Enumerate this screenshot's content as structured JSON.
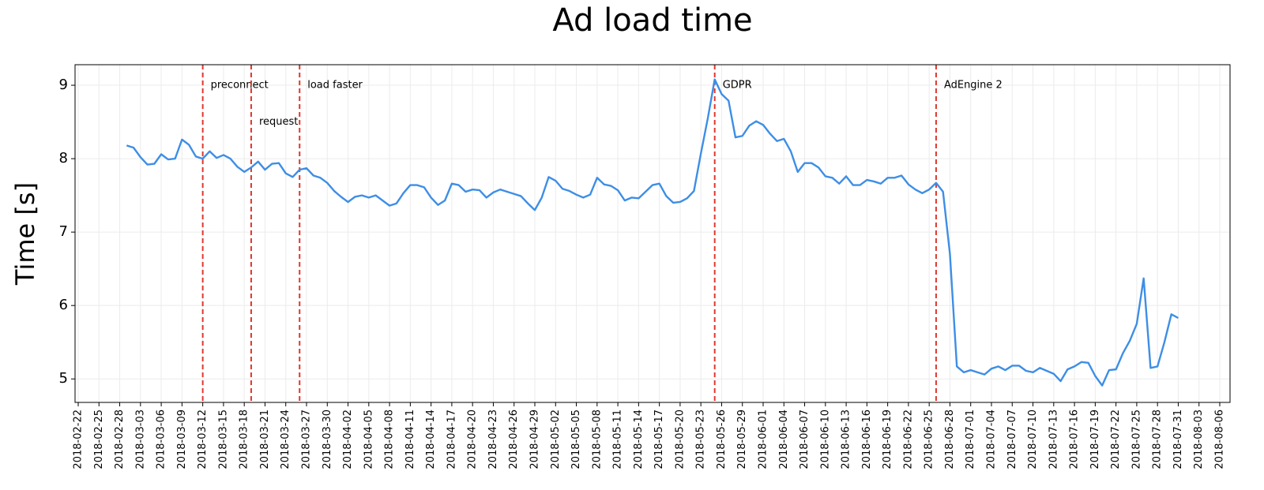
{
  "chart_data": {
    "type": "line",
    "title": "Ad load time",
    "ylabel": "Time [s]",
    "color": "#3d8ee6",
    "grid": true,
    "xlim": [
      "2018-02-22",
      "2018-08-06"
    ],
    "ylim": [
      4.68,
      9.28
    ],
    "yticks": [
      5,
      6,
      7,
      8,
      9
    ],
    "xticks": [
      "2018-02-22",
      "2018-02-25",
      "2018-02-28",
      "2018-03-03",
      "2018-03-06",
      "2018-03-09",
      "2018-03-12",
      "2018-03-15",
      "2018-03-18",
      "2018-03-21",
      "2018-03-24",
      "2018-03-27",
      "2018-03-30",
      "2018-04-02",
      "2018-04-05",
      "2018-04-08",
      "2018-04-11",
      "2018-04-14",
      "2018-04-17",
      "2018-04-20",
      "2018-04-23",
      "2018-04-26",
      "2018-04-29",
      "2018-05-02",
      "2018-05-05",
      "2018-05-08",
      "2018-05-11",
      "2018-05-14",
      "2018-05-17",
      "2018-05-20",
      "2018-05-23",
      "2018-05-26",
      "2018-05-29",
      "2018-06-01",
      "2018-06-04",
      "2018-06-07",
      "2018-06-10",
      "2018-06-13",
      "2018-06-16",
      "2018-06-19",
      "2018-06-22",
      "2018-06-25",
      "2018-06-28",
      "2018-07-01",
      "2018-07-04",
      "2018-07-07",
      "2018-07-10",
      "2018-07-13",
      "2018-07-16",
      "2018-07-19",
      "2018-07-22",
      "2018-07-25",
      "2018-07-28",
      "2018-07-31",
      "2018-08-03",
      "2018-08-06"
    ],
    "annotations": [
      {
        "x": "2018-03-12",
        "y": 9,
        "label": "preconnect"
      },
      {
        "x": "2018-03-19",
        "y": 8.5,
        "label": "request"
      },
      {
        "x": "2018-03-26",
        "y": 9,
        "label": "load faster"
      },
      {
        "x": "2018-05-25",
        "y": 9,
        "label": "GDPR"
      },
      {
        "x": "2018-06-26",
        "y": 9,
        "label": "AdEngine 2"
      }
    ],
    "annotation_color": "#e0362c",
    "x": [
      "2018-03-01",
      "2018-03-02",
      "2018-03-03",
      "2018-03-04",
      "2018-03-05",
      "2018-03-06",
      "2018-03-07",
      "2018-03-08",
      "2018-03-09",
      "2018-03-10",
      "2018-03-11",
      "2018-03-12",
      "2018-03-13",
      "2018-03-14",
      "2018-03-15",
      "2018-03-16",
      "2018-03-17",
      "2018-03-18",
      "2018-03-19",
      "2018-03-20",
      "2018-03-21",
      "2018-03-22",
      "2018-03-23",
      "2018-03-24",
      "2018-03-25",
      "2018-03-26",
      "2018-03-27",
      "2018-03-28",
      "2018-03-29",
      "2018-03-30",
      "2018-03-31",
      "2018-04-01",
      "2018-04-02",
      "2018-04-03",
      "2018-04-04",
      "2018-04-05",
      "2018-04-06",
      "2018-04-07",
      "2018-04-08",
      "2018-04-09",
      "2018-04-10",
      "2018-04-11",
      "2018-04-12",
      "2018-04-13",
      "2018-04-14",
      "2018-04-15",
      "2018-04-16",
      "2018-04-17",
      "2018-04-18",
      "2018-04-19",
      "2018-04-20",
      "2018-04-21",
      "2018-04-22",
      "2018-04-23",
      "2018-04-24",
      "2018-04-25",
      "2018-04-26",
      "2018-04-27",
      "2018-04-28",
      "2018-04-29",
      "2018-04-30",
      "2018-05-01",
      "2018-05-02",
      "2018-05-03",
      "2018-05-04",
      "2018-05-05",
      "2018-05-06",
      "2018-05-07",
      "2018-05-08",
      "2018-05-09",
      "2018-05-10",
      "2018-05-11",
      "2018-05-12",
      "2018-05-13",
      "2018-05-14",
      "2018-05-15",
      "2018-05-16",
      "2018-05-17",
      "2018-05-18",
      "2018-05-19",
      "2018-05-20",
      "2018-05-21",
      "2018-05-22",
      "2018-05-23",
      "2018-05-24",
      "2018-05-25",
      "2018-05-26",
      "2018-05-27",
      "2018-05-28",
      "2018-05-29",
      "2018-05-30",
      "2018-05-31",
      "2018-06-01",
      "2018-06-02",
      "2018-06-03",
      "2018-06-04",
      "2018-06-05",
      "2018-06-06",
      "2018-06-07",
      "2018-06-08",
      "2018-06-09",
      "2018-06-10",
      "2018-06-11",
      "2018-06-12",
      "2018-06-13",
      "2018-06-14",
      "2018-06-15",
      "2018-06-16",
      "2018-06-17",
      "2018-06-18",
      "2018-06-19",
      "2018-06-20",
      "2018-06-21",
      "2018-06-22",
      "2018-06-23",
      "2018-06-24",
      "2018-06-25",
      "2018-06-26",
      "2018-06-27",
      "2018-06-28",
      "2018-06-29",
      "2018-06-30",
      "2018-07-01",
      "2018-07-02",
      "2018-07-03",
      "2018-07-04",
      "2018-07-05",
      "2018-07-06",
      "2018-07-07",
      "2018-07-08",
      "2018-07-09",
      "2018-07-10",
      "2018-07-11",
      "2018-07-12",
      "2018-07-13",
      "2018-07-14",
      "2018-07-15",
      "2018-07-16",
      "2018-07-17",
      "2018-07-18",
      "2018-07-19",
      "2018-07-20",
      "2018-07-21",
      "2018-07-22",
      "2018-07-23",
      "2018-07-24",
      "2018-07-25",
      "2018-07-26",
      "2018-07-27",
      "2018-07-28",
      "2018-07-29",
      "2018-07-30",
      "2018-07-31"
    ],
    "values": [
      8.18,
      8.15,
      8.02,
      7.92,
      7.93,
      8.06,
      7.99,
      8.0,
      8.26,
      8.19,
      8.03,
      8.0,
      8.1,
      8.01,
      8.05,
      8.0,
      7.89,
      7.82,
      7.88,
      7.96,
      7.85,
      7.93,
      7.94,
      7.8,
      7.75,
      7.85,
      7.87,
      7.77,
      7.74,
      7.67,
      7.56,
      7.48,
      7.41,
      7.48,
      7.5,
      7.47,
      7.5,
      7.43,
      7.36,
      7.39,
      7.53,
      7.64,
      7.64,
      7.61,
      7.47,
      7.37,
      7.43,
      7.66,
      7.64,
      7.55,
      7.58,
      7.57,
      7.47,
      7.54,
      7.58,
      7.55,
      7.52,
      7.49,
      7.39,
      7.3,
      7.47,
      7.75,
      7.7,
      7.59,
      7.56,
      7.51,
      7.47,
      7.51,
      7.74,
      7.65,
      7.63,
      7.57,
      7.43,
      7.47,
      7.46,
      7.55,
      7.64,
      7.66,
      7.49,
      7.4,
      7.41,
      7.46,
      7.56,
      8.07,
      8.55,
      9.08,
      8.88,
      8.79,
      8.29,
      8.31,
      8.45,
      8.51,
      8.46,
      8.34,
      8.24,
      8.27,
      8.1,
      7.82,
      7.94,
      7.94,
      7.88,
      7.76,
      7.74,
      7.66,
      7.76,
      7.64,
      7.64,
      7.71,
      7.69,
      7.66,
      7.74,
      7.74,
      7.77,
      7.65,
      7.58,
      7.53,
      7.58,
      7.67,
      7.55,
      6.7,
      5.17,
      5.09,
      5.12,
      5.09,
      5.06,
      5.14,
      5.17,
      5.12,
      5.18,
      5.18,
      5.11,
      5.09,
      5.15,
      5.11,
      5.07,
      4.97,
      5.13,
      5.17,
      5.23,
      5.22,
      5.04,
      4.91,
      5.12,
      5.13,
      5.35,
      5.52,
      5.75,
      6.37,
      5.15,
      5.17,
      5.5,
      5.88,
      5.83
    ]
  }
}
